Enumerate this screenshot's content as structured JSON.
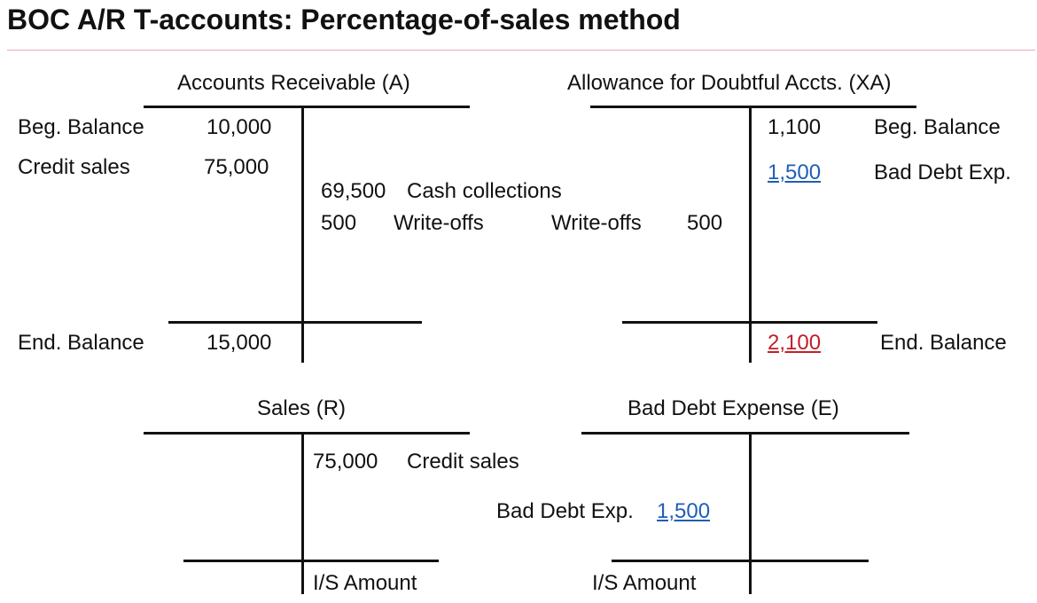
{
  "title": "BOC A/R T-accounts: Percentage-of-sales method",
  "colors": {
    "highlight_blue": "#1f5fb4",
    "highlight_red": "#c0202a",
    "title_rule": "#e8a9b4"
  },
  "accounts_receivable": {
    "header": "Accounts Receivable (A)",
    "beg_label": "Beg. Balance",
    "beg_value": "10,000",
    "credit_label": "Credit sales",
    "credit_value": "75,000",
    "cash_value": "69,500",
    "cash_label": "Cash collections",
    "writeoff_value": "500",
    "writeoff_label": "Write-offs",
    "end_label": "End. Balance",
    "end_value": "15,000"
  },
  "allowance": {
    "header": "Allowance for Doubtful Accts. (XA)",
    "beg_value": "1,100",
    "beg_label": "Beg. Balance",
    "bad_debt_value": "1,500",
    "bad_debt_label": "Bad Debt Exp.",
    "writeoff_label": "Write-offs",
    "writeoff_value": "500",
    "end_value": "2,100",
    "end_label": "End. Balance"
  },
  "sales": {
    "header": "Sales (R)",
    "credit_value": "75,000",
    "credit_label": "Credit sales",
    "is_label": "I/S Amount"
  },
  "bad_debt_expense": {
    "header": "Bad Debt Expense (E)",
    "entry_label": "Bad Debt Exp.",
    "entry_value": "1,500",
    "is_label": "I/S Amount"
  }
}
